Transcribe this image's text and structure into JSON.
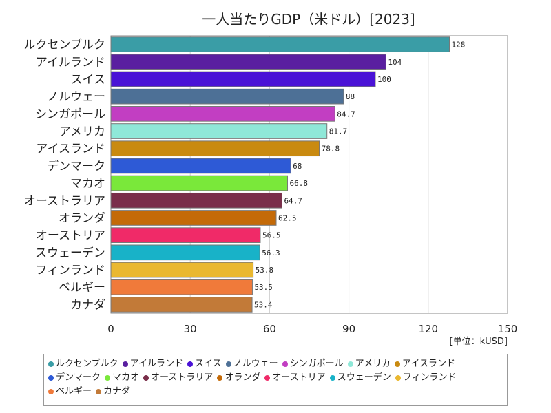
{
  "chart_data": {
    "type": "bar",
    "orientation": "horizontal",
    "title": "一人当たりGDP（米ドル）[2023]",
    "unit_label": "[単位：kUSD]",
    "xlim": [
      0,
      150
    ],
    "xticks": [
      "0",
      "30",
      "60",
      "90",
      "120",
      "150"
    ],
    "grid": true,
    "legend": "bottom",
    "categories": [
      "ルクセンブルク",
      "アイルランド",
      "スイス",
      "ノルウェー",
      "シンガポール",
      "アメリカ",
      "アイスランド",
      "デンマーク",
      "マカオ",
      "オーストラリア",
      "オランダ",
      "オーストリア",
      "スウェーデン",
      "フィンランド",
      "ベルギー",
      "カナダ"
    ],
    "values": [
      128,
      104,
      100,
      88,
      84.7,
      81.7,
      78.8,
      68,
      66.8,
      64.7,
      62.5,
      56.5,
      56.3,
      53.8,
      53.5,
      53.4
    ],
    "value_labels": [
      "128",
      "104",
      "100",
      "88",
      "84.7",
      "81.7",
      "78.8",
      "68",
      "66.8",
      "64.7",
      "62.5",
      "56.5",
      "56.3",
      "53.8",
      "53.5",
      "53.4"
    ],
    "colors": [
      "#3a9da6",
      "#5a1fa0",
      "#4a12d6",
      "#4d7096",
      "#c23ec2",
      "#8fe8d8",
      "#c98a10",
      "#2e5ad6",
      "#7ae83a",
      "#7a2e4a",
      "#c46a08",
      "#f02a68",
      "#18b2c8",
      "#eab830",
      "#f07a3a",
      "#c27a38"
    ]
  }
}
